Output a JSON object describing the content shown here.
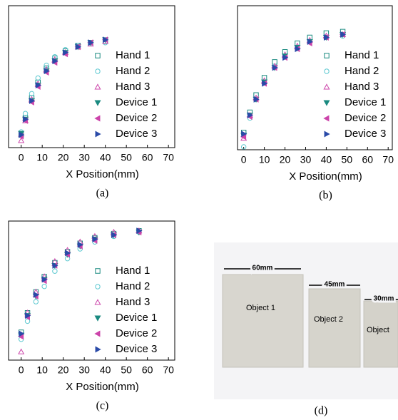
{
  "chart_data": [
    {
      "type": "scatter",
      "x_label": "X Position(mm)",
      "caption": "(a)",
      "xlim": [
        -6,
        73
      ],
      "ylim": [
        0,
        100
      ],
      "xticks": [
        0,
        10,
        20,
        30,
        40,
        50,
        60,
        70
      ],
      "legend": "right",
      "x": [
        0,
        2,
        5,
        8,
        12,
        16,
        21,
        27,
        33,
        40
      ],
      "series": [
        {
          "name": "Hand 1",
          "color": "#1a8a80",
          "marker": "square",
          "filled": false,
          "values": [
            9,
            21,
            35,
            46,
            56,
            63,
            68,
            72,
            74,
            75
          ]
        },
        {
          "name": "Hand 2",
          "color": "#5cc8d0",
          "marker": "circle",
          "filled": false,
          "values": [
            11,
            24,
            38,
            49,
            58,
            64,
            69,
            72,
            74,
            74
          ]
        },
        {
          "name": "Hand 3",
          "color": "#cc44aa",
          "marker": "triangle-up",
          "filled": false,
          "values": [
            5,
            19,
            34,
            45,
            55,
            62,
            67,
            71,
            73,
            75
          ]
        },
        {
          "name": "Device 1",
          "color": "#1a8a80",
          "marker": "triangle-down",
          "filled": true,
          "values": [
            10,
            20,
            33,
            44,
            54,
            61,
            67,
            71,
            74,
            76
          ]
        },
        {
          "name": "Device 2",
          "color": "#cc44aa",
          "marker": "triangle-left",
          "filled": true,
          "values": [
            8,
            19,
            32,
            43,
            53,
            60,
            66,
            71,
            74,
            76
          ]
        },
        {
          "name": "Device 3",
          "color": "#2a4aa8",
          "marker": "triangle-right",
          "filled": true,
          "values": [
            9,
            20,
            33,
            44,
            54,
            61,
            67,
            71,
            74,
            76
          ]
        }
      ]
    },
    {
      "type": "scatter",
      "x_label": "X Position(mm)",
      "caption": "(b)",
      "xlim": [
        -3,
        72
      ],
      "ylim": [
        0,
        100
      ],
      "xticks": [
        0,
        10,
        20,
        30,
        40,
        50,
        60,
        70
      ],
      "legend": "right",
      "x": [
        0,
        3,
        6,
        10,
        15,
        20,
        26,
        32,
        40,
        48
      ],
      "series": [
        {
          "name": "Hand 1",
          "color": "#1a8a80",
          "marker": "square",
          "filled": false,
          "values": [
            12,
            26,
            38,
            50,
            61,
            68,
            74,
            78,
            81,
            82
          ]
        },
        {
          "name": "Hand 2",
          "color": "#5cc8d0",
          "marker": "circle",
          "filled": false,
          "values": [
            2,
            22,
            35,
            47,
            58,
            65,
            71,
            75,
            78,
            79
          ]
        },
        {
          "name": "Hand 3",
          "color": "#cc44aa",
          "marker": "triangle-up",
          "filled": false,
          "values": [
            8,
            24,
            36,
            48,
            58,
            66,
            72,
            76,
            79,
            80
          ]
        },
        {
          "name": "Device 1",
          "color": "#1a8a80",
          "marker": "triangle-down",
          "filled": true,
          "values": [
            10,
            24,
            35,
            47,
            57,
            65,
            71,
            75,
            78,
            80
          ]
        },
        {
          "name": "Device 2",
          "color": "#cc44aa",
          "marker": "triangle-left",
          "filled": true,
          "values": [
            9,
            23,
            35,
            46,
            57,
            64,
            70,
            74,
            78,
            80
          ]
        },
        {
          "name": "Device 3",
          "color": "#2a4aa8",
          "marker": "triangle-right",
          "filled": true,
          "values": [
            11,
            24,
            35,
            46,
            57,
            64,
            70,
            75,
            78,
            80
          ]
        }
      ]
    },
    {
      "type": "scatter",
      "x_label": "X Position(mm)",
      "caption": "(c)",
      "xlim": [
        -6,
        73
      ],
      "ylim": [
        0,
        100
      ],
      "xticks": [
        0,
        10,
        20,
        30,
        40,
        50,
        60,
        70
      ],
      "legend": "right",
      "x": [
        0,
        3,
        7,
        11,
        16,
        22,
        28,
        35,
        44,
        56
      ],
      "series": [
        {
          "name": "Hand 1",
          "color": "#1a8a80",
          "marker": "square",
          "filled": false,
          "values": [
            20,
            34,
            49,
            60,
            70,
            78,
            84,
            88,
            91,
            93
          ]
        },
        {
          "name": "Hand 2",
          "color": "#5cc8d0",
          "marker": "circle",
          "filled": false,
          "values": [
            15,
            28,
            42,
            53,
            64,
            73,
            80,
            85,
            89,
            92
          ]
        },
        {
          "name": "Hand 3",
          "color": "#cc44aa",
          "marker": "triangle-up",
          "filled": false,
          "values": [
            6,
            34,
            49,
            60,
            71,
            79,
            85,
            89,
            92,
            93
          ]
        },
        {
          "name": "Device 1",
          "color": "#1a8a80",
          "marker": "triangle-down",
          "filled": true,
          "values": [
            18,
            32,
            46,
            58,
            68,
            76,
            82,
            87,
            90,
            92
          ]
        },
        {
          "name": "Device 2",
          "color": "#cc44aa",
          "marker": "triangle-left",
          "filled": true,
          "values": [
            17,
            31,
            46,
            57,
            68,
            76,
            82,
            86,
            90,
            92
          ]
        },
        {
          "name": "Device 3",
          "color": "#2a4aa8",
          "marker": "triangle-right",
          "filled": true,
          "values": [
            19,
            32,
            47,
            58,
            68,
            77,
            83,
            87,
            90,
            93
          ]
        }
      ]
    }
  ],
  "photo": {
    "caption": "(d)",
    "dimensions": [
      "60mm",
      "45mm",
      "30mm"
    ],
    "objects": [
      "Object 1",
      "Object 2",
      "Object"
    ]
  }
}
